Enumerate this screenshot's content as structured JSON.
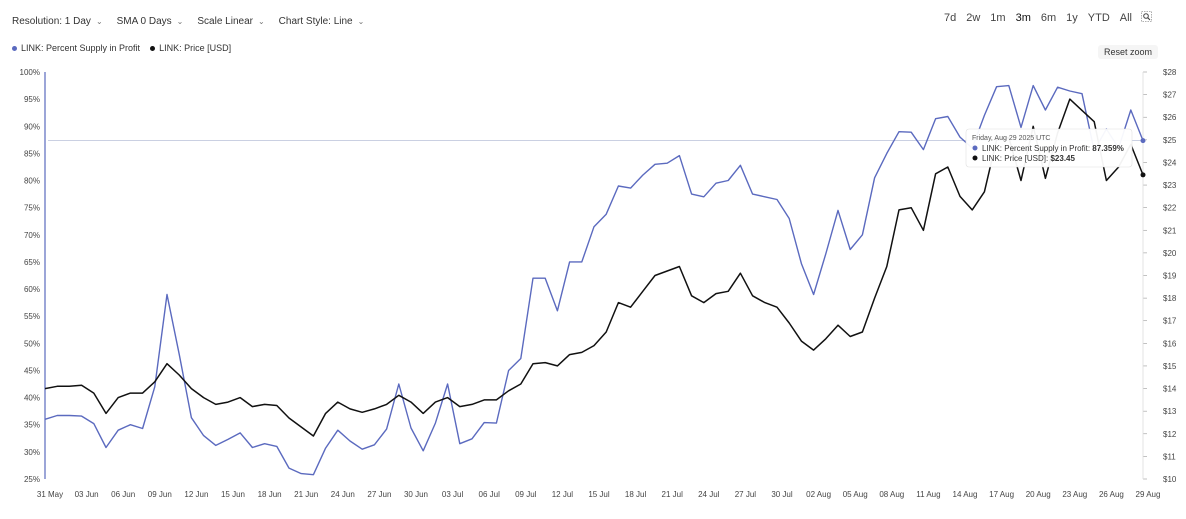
{
  "toolbar": {
    "resolution": "Resolution: 1 Day",
    "sma": "SMA 0 Days",
    "scale": "Scale Linear",
    "style": "Chart Style: Line"
  },
  "ranges": [
    "7d",
    "2w",
    "1m",
    "3m",
    "6m",
    "1y",
    "YTD",
    "All"
  ],
  "active_range": "3m",
  "reset_zoom": "Reset zoom",
  "colors": {
    "supply": "#5b6abf",
    "price": "#111111",
    "grid": "#eaeaea",
    "crosshair": "#b8c0d8"
  },
  "tooltip": {
    "date": "Friday, Aug 29 2025 UTC",
    "supply_label": "LINK: Percent Supply in Profit:",
    "supply_value": "87.359%",
    "price_label": "LINK: Price [USD]:",
    "price_value": "$23.45"
  },
  "chart_data": {
    "type": "line",
    "x": [
      "31 May",
      "01 Jun",
      "02 Jun",
      "03 Jun",
      "04 Jun",
      "05 Jun",
      "06 Jun",
      "07 Jun",
      "08 Jun",
      "09 Jun",
      "10 Jun",
      "11 Jun",
      "12 Jun",
      "13 Jun",
      "14 Jun",
      "15 Jun",
      "16 Jun",
      "17 Jun",
      "18 Jun",
      "19 Jun",
      "20 Jun",
      "21 Jun",
      "22 Jun",
      "23 Jun",
      "24 Jun",
      "25 Jun",
      "26 Jun",
      "27 Jun",
      "28 Jun",
      "29 Jun",
      "30 Jun",
      "01 Jul",
      "02 Jul",
      "03 Jul",
      "04 Jul",
      "05 Jul",
      "06 Jul",
      "07 Jul",
      "08 Jul",
      "09 Jul",
      "10 Jul",
      "11 Jul",
      "12 Jul",
      "13 Jul",
      "14 Jul",
      "15 Jul",
      "16 Jul",
      "17 Jul",
      "18 Jul",
      "19 Jul",
      "20 Jul",
      "21 Jul",
      "22 Jul",
      "23 Jul",
      "24 Jul",
      "25 Jul",
      "26 Jul",
      "27 Jul",
      "28 Jul",
      "29 Jul",
      "30 Jul",
      "31 Jul",
      "01 Aug",
      "02 Aug",
      "03 Aug",
      "04 Aug",
      "05 Aug",
      "06 Aug",
      "07 Aug",
      "08 Aug",
      "09 Aug",
      "10 Aug",
      "11 Aug",
      "12 Aug",
      "13 Aug",
      "14 Aug",
      "15 Aug",
      "16 Aug",
      "17 Aug",
      "18 Aug",
      "19 Aug",
      "20 Aug",
      "21 Aug",
      "22 Aug",
      "23 Aug",
      "24 Aug",
      "25 Aug",
      "26 Aug",
      "27 Aug",
      "28 Aug",
      "29 Aug"
    ],
    "x_ticks": [
      "31 May",
      "03 Jun",
      "06 Jun",
      "09 Jun",
      "12 Jun",
      "15 Jun",
      "18 Jun",
      "21 Jun",
      "24 Jun",
      "27 Jun",
      "30 Jun",
      "03 Jul",
      "06 Jul",
      "09 Jul",
      "12 Jul",
      "15 Jul",
      "18 Jul",
      "21 Jul",
      "24 Jul",
      "27 Jul",
      "30 Jul",
      "02 Aug",
      "05 Aug",
      "08 Aug",
      "11 Aug",
      "14 Aug",
      "17 Aug",
      "20 Aug",
      "23 Aug",
      "26 Aug",
      "29 Aug"
    ],
    "series": [
      {
        "name": "LINK: Percent Supply in Profit",
        "axis": "left",
        "unit": "%",
        "values": [
          36,
          36.7,
          36.7,
          36.6,
          35.2,
          30.8,
          34,
          35,
          34.3,
          42,
          59,
          48,
          36.3,
          33,
          31.2,
          32.3,
          33.5,
          30.8,
          31.5,
          31,
          27,
          26,
          25.8,
          30.7,
          34,
          32,
          30.5,
          31.3,
          34.2,
          42.5,
          34.4,
          30.2,
          35.3,
          42.5,
          31.5,
          32.4,
          35.4,
          35.3,
          45,
          47.2,
          62,
          62,
          56,
          65,
          65,
          71.5,
          73.8,
          79,
          78.6,
          81,
          83,
          83.2,
          84.6,
          77.5,
          77,
          79.5,
          80,
          82.8,
          77.5,
          77,
          76.5,
          73,
          64.7,
          59,
          66.5,
          74.5,
          67.3,
          70,
          80.5,
          85,
          89,
          88.9,
          85.7,
          91.4,
          91.8,
          88,
          86,
          92,
          97.3,
          97.5,
          89.8,
          97.5,
          93,
          97.2,
          96.5,
          96,
          85.5,
          89.5,
          86,
          93,
          87.36
        ]
      },
      {
        "name": "LINK: Price [USD]",
        "axis": "right",
        "unit": "$",
        "values": [
          14,
          14.1,
          14.1,
          14.15,
          13.8,
          12.9,
          13.6,
          13.8,
          13.8,
          14.3,
          15.1,
          14.6,
          14,
          13.6,
          13.3,
          13.4,
          13.6,
          13.2,
          13.3,
          13.25,
          12.7,
          12.3,
          11.9,
          12.9,
          13.4,
          13.1,
          12.95,
          13.1,
          13.3,
          13.7,
          13.4,
          12.9,
          13.4,
          13.6,
          13.2,
          13.3,
          13.5,
          13.5,
          13.9,
          14.2,
          15.1,
          15.15,
          15,
          15.5,
          15.6,
          15.9,
          16.5,
          17.8,
          17.6,
          18.3,
          19,
          19.2,
          19.4,
          18.1,
          17.8,
          18.2,
          18.3,
          19.1,
          18.1,
          17.8,
          17.6,
          16.9,
          16.1,
          15.7,
          16.2,
          16.8,
          16.3,
          16.5,
          18,
          19.4,
          21.9,
          22,
          21,
          23.5,
          23.8,
          22.5,
          21.9,
          22.7,
          25,
          25.1,
          23.2,
          25.6,
          23.3,
          25.3,
          26.8,
          26.3,
          25.8,
          23.2,
          23.8,
          24.8,
          23.45
        ]
      }
    ],
    "yleft": {
      "min": 25,
      "max": 100,
      "step": 5,
      "ticks": [
        "25%",
        "30%",
        "35%",
        "40%",
        "45%",
        "50%",
        "55%",
        "60%",
        "65%",
        "70%",
        "75%",
        "80%",
        "85%",
        "90%",
        "95%",
        "100%"
      ]
    },
    "yright": {
      "min": 10,
      "max": 28,
      "step": 1,
      "ticks": [
        "$10",
        "$11",
        "$12",
        "$13",
        "$14",
        "$15",
        "$16",
        "$17",
        "$18",
        "$19",
        "$20",
        "$21",
        "$22",
        "$23",
        "$24",
        "$25",
        "$26",
        "$27",
        "$28"
      ]
    },
    "crosshair_value": 87.36,
    "legend_position": "top-left"
  }
}
